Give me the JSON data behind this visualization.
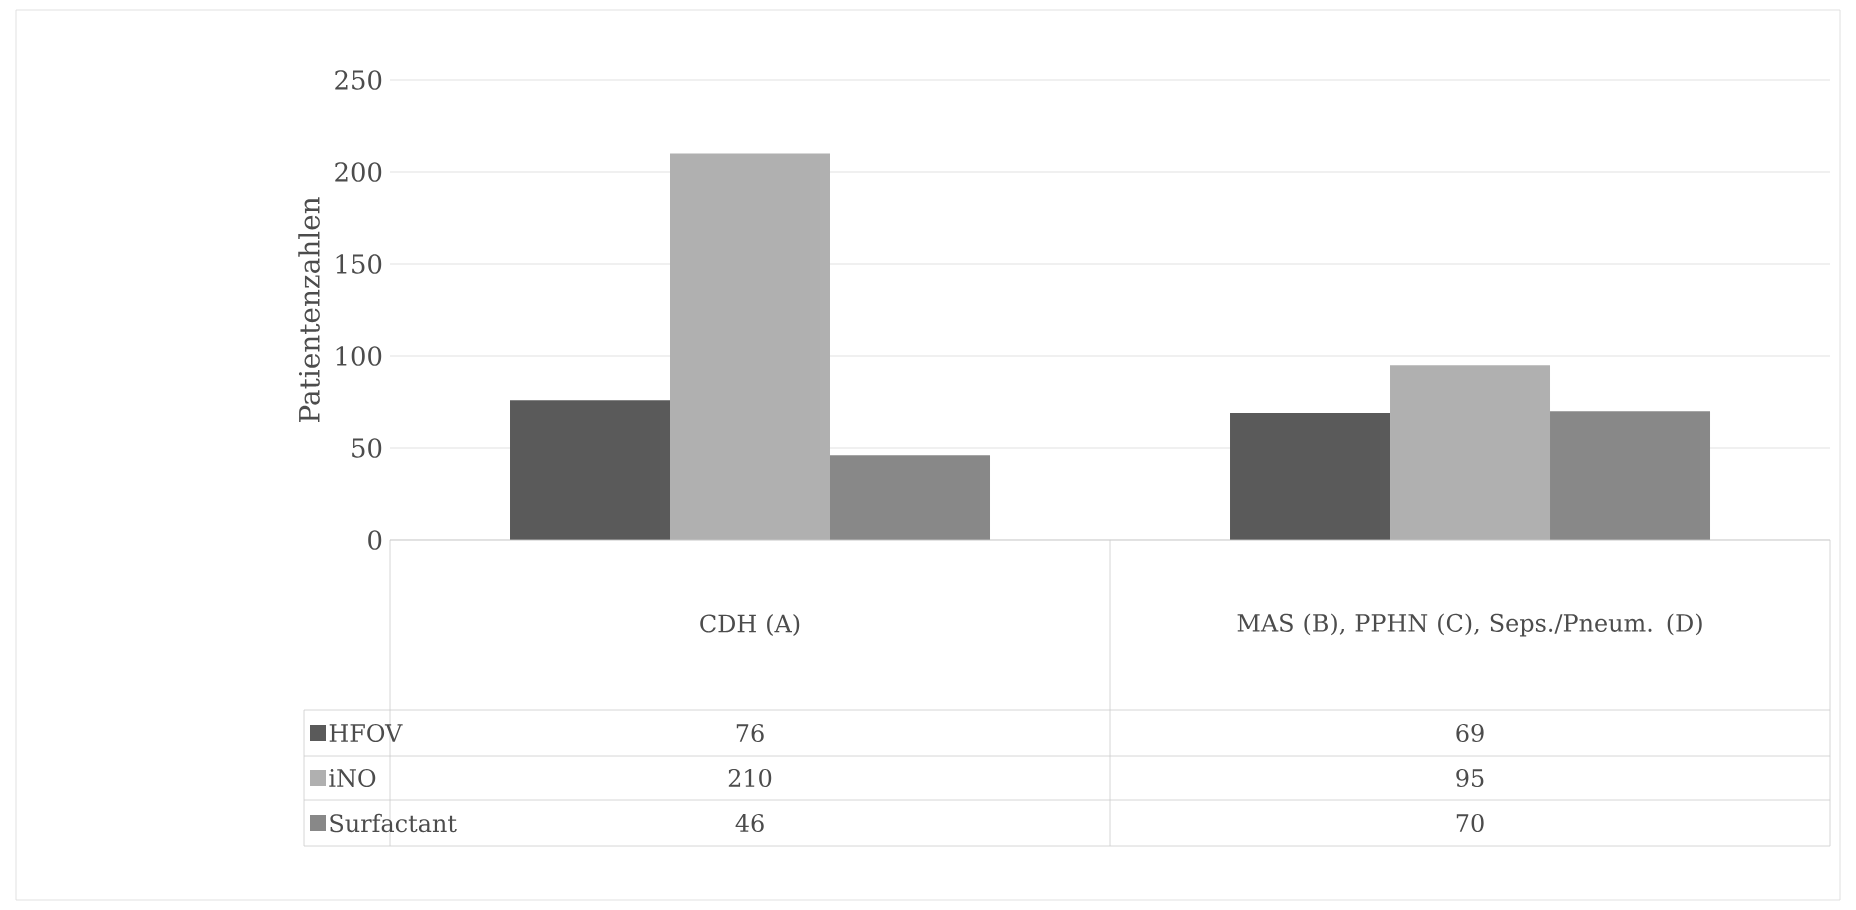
{
  "chart_data": {
    "type": "bar",
    "ylabel": "Patientenzahlen",
    "categories": [
      "CDH (A)",
      "MAS (B), PPHN (C), Seps./Pneum. (D)"
    ],
    "series": [
      {
        "name": "HFOV",
        "color": "#5a5a5a",
        "values": [
          76,
          69
        ],
        "value_labels": [
          "76",
          "69"
        ]
      },
      {
        "name": "iNO",
        "color": "#b0b0b0",
        "values": [
          210,
          95
        ],
        "value_labels": [
          "210",
          "95"
        ]
      },
      {
        "name": "Surfactant",
        "color": "#888888",
        "values": [
          46,
          70
        ],
        "value_labels": [
          "46",
          "70"
        ]
      }
    ],
    "ylim": [
      0,
      250
    ],
    "yticks": [
      0,
      50,
      100,
      150,
      200,
      250
    ],
    "grid": "y",
    "legend": "bottom left"
  }
}
